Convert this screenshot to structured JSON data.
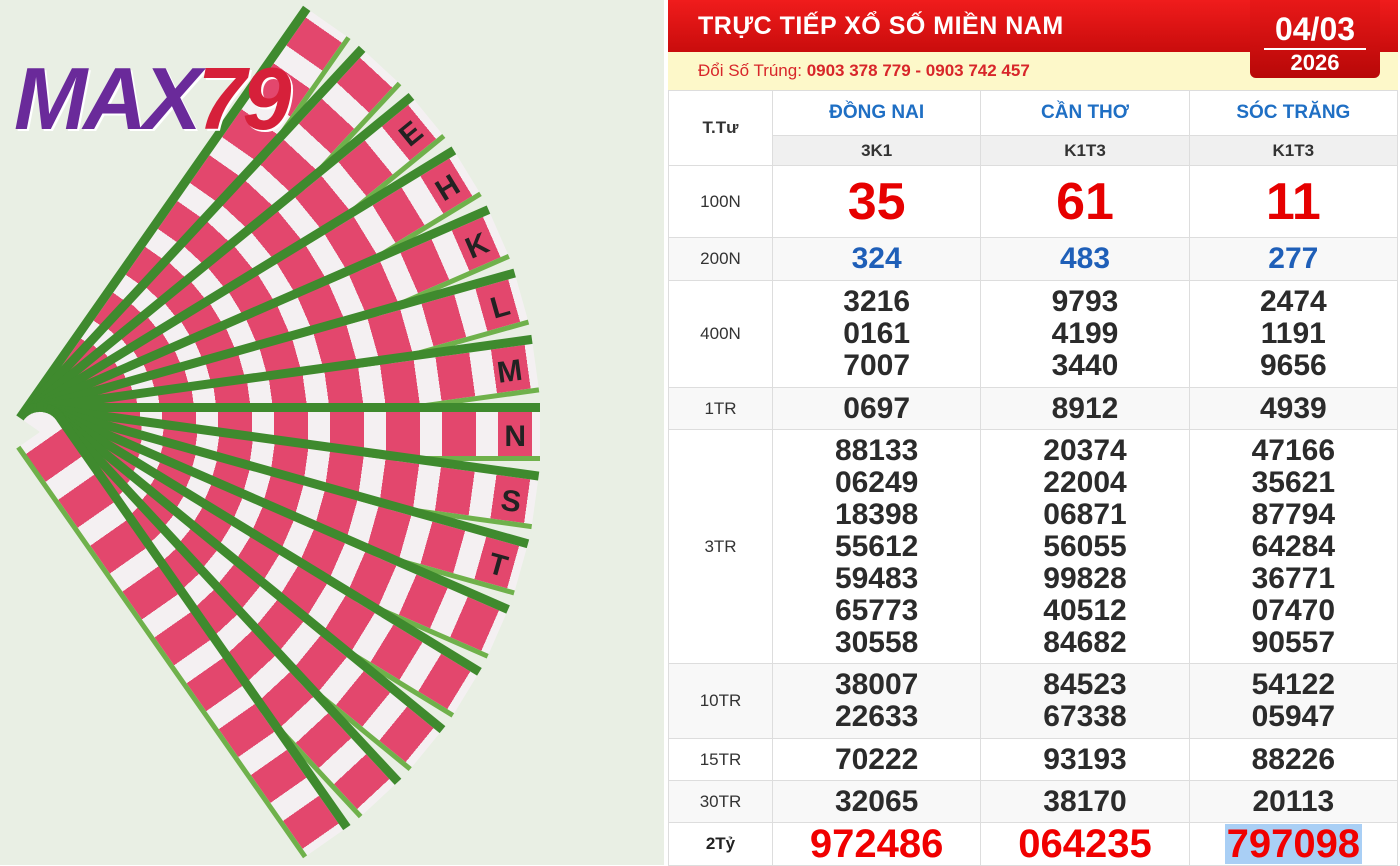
{
  "photo": {
    "logo": "MAX79",
    "ticket_letters": [
      "E",
      "H",
      "K",
      "L",
      "M",
      "N",
      "S",
      "T"
    ]
  },
  "header": {
    "title": "TRỰC TIẾP XỔ SỐ MIỀN NAM",
    "contact_label": "Đổi Số Trúng:",
    "contact_phones": "0903 378 779 - 0903 742 457",
    "date_day": "04/03",
    "date_year": "2026"
  },
  "table": {
    "day_label": "T.Tư",
    "provinces": [
      {
        "name": "ĐỒNG NAI",
        "code": "3K1"
      },
      {
        "name": "CẦN THƠ",
        "code": "K1T3"
      },
      {
        "name": "SÓC TRĂNG",
        "code": "K1T3"
      }
    ],
    "rows": [
      {
        "label": "100N",
        "style": "big",
        "values": [
          [
            "35"
          ],
          [
            "61"
          ],
          [
            "11"
          ]
        ]
      },
      {
        "label": "200N",
        "style": "blue",
        "values": [
          [
            "324"
          ],
          [
            "483"
          ],
          [
            "277"
          ]
        ]
      },
      {
        "label": "400N",
        "style": "",
        "values": [
          [
            "3216",
            "0161",
            "7007"
          ],
          [
            "9793",
            "4199",
            "3440"
          ],
          [
            "2474",
            "1191",
            "9656"
          ]
        ]
      },
      {
        "label": "1TR",
        "style": "",
        "values": [
          [
            "0697"
          ],
          [
            "8912"
          ],
          [
            "4939"
          ]
        ]
      },
      {
        "label": "3TR",
        "style": "",
        "values": [
          [
            "88133",
            "06249",
            "18398",
            "55612",
            "59483",
            "65773",
            "30558"
          ],
          [
            "20374",
            "22004",
            "06871",
            "56055",
            "99828",
            "40512",
            "84682"
          ],
          [
            "47166",
            "35621",
            "87794",
            "64284",
            "36771",
            "07470",
            "90557"
          ]
        ]
      },
      {
        "label": "10TR",
        "style": "",
        "values": [
          [
            "38007",
            "22633"
          ],
          [
            "84523",
            "67338"
          ],
          [
            "54122",
            "05947"
          ]
        ]
      },
      {
        "label": "15TR",
        "style": "",
        "values": [
          [
            "70222"
          ],
          [
            "93193"
          ],
          [
            "88226"
          ]
        ]
      },
      {
        "label": "30TR",
        "style": "",
        "values": [
          [
            "32065"
          ],
          [
            "38170"
          ],
          [
            "20113"
          ]
        ]
      },
      {
        "label": "2Tỷ",
        "style": "jack",
        "values": [
          [
            "972486"
          ],
          [
            "064235"
          ],
          [
            "797098"
          ]
        ]
      }
    ]
  },
  "colors": {
    "header_red": "#e01010",
    "prize_red": "#e60000",
    "blue": "#1f5fb8",
    "highlight": "#a9cff5"
  }
}
